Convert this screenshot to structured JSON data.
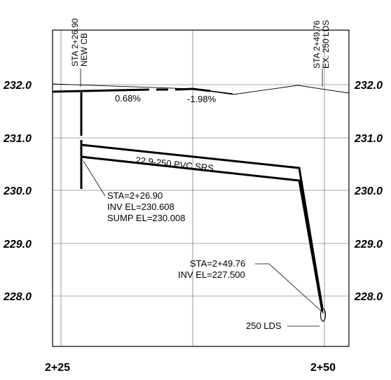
{
  "elevation_labels": {
    "left": [
      "232.0",
      "231.0",
      "230.0",
      "229.0",
      "228.0"
    ],
    "right": [
      "232.0",
      "231.0",
      "230.0",
      "229.0",
      "228.0"
    ]
  },
  "station_labels": [
    "2+25",
    "2+50"
  ],
  "vertical_labels": {
    "cb_sta": "STA 2+26.90",
    "cb_name": "NEW CB",
    "lds_sta": "STA 2+49.76",
    "lds_name": "EX. 250 LDS"
  },
  "grade_labels": [
    "0.68%",
    "-1.98%"
  ],
  "pipe_label": "22.9-250 PVC SRS",
  "cb_callout": {
    "line1": "STA=2+26.90",
    "line2": "INV  EL=230.608",
    "line3": "SUMP EL=230.008"
  },
  "lds_callout": {
    "line1": "STA=2+49.76",
    "line2": "INV  EL=227.500"
  },
  "lds_label": "250 LDS"
}
